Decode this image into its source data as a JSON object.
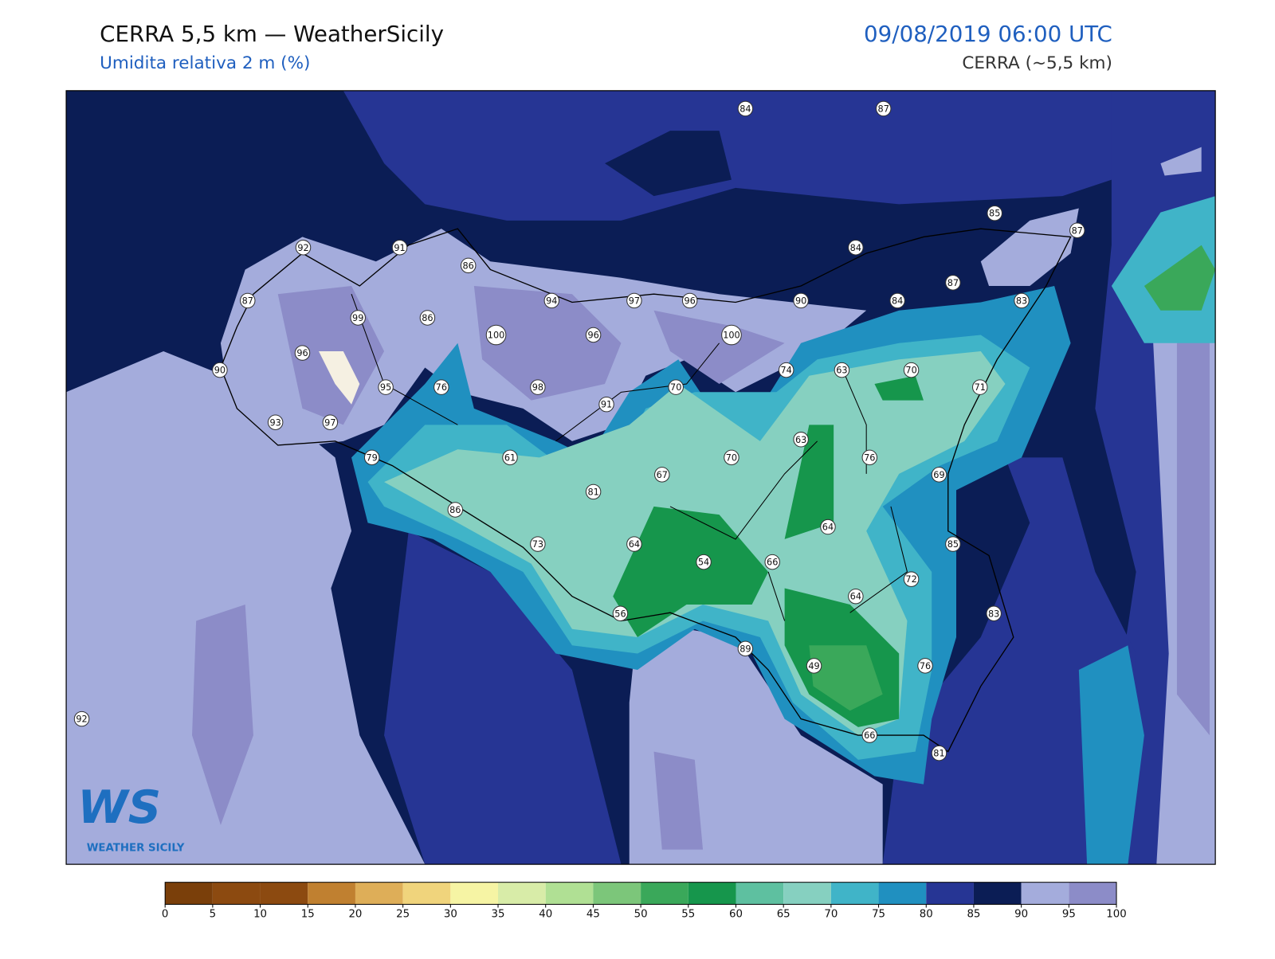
{
  "header": {
    "title": "CERRA 5,5 km — WeatherSicily",
    "subtitle": "Umidita relativa 2 m (%)",
    "datetime": "09/08/2019 06:00 UTC",
    "model": "CERRA (~5,5 km)"
  },
  "logo": {
    "mark": "WS",
    "text": "WEATHER SICILY"
  },
  "stations": [
    84,
    87,
    92,
    91,
    86,
    85,
    87,
    84,
    87,
    99,
    86,
    94,
    97,
    96,
    90,
    84,
    87,
    83,
    100,
    96,
    100,
    96,
    90,
    95,
    76,
    98,
    70,
    74,
    63,
    70,
    71,
    93,
    97,
    91,
    63,
    79,
    61,
    70,
    76,
    67,
    69,
    81,
    86,
    64,
    73,
    64,
    85,
    54,
    66,
    72,
    64,
    56,
    83,
    89,
    49,
    76,
    92,
    66,
    81
  ],
  "colorbar": {
    "ticks": [
      0,
      5,
      10,
      15,
      20,
      25,
      30,
      35,
      40,
      45,
      50,
      55,
      60,
      65,
      70,
      75,
      80,
      85,
      90,
      95,
      100
    ],
    "colors": [
      "#7a3f0a",
      "#8c4a10",
      "#8c4a10",
      "#c08030",
      "#deae58",
      "#f0d47c",
      "#f6f4a4",
      "#d8eca8",
      "#b0e094",
      "#7cc67a",
      "#3aa85a",
      "#16964c",
      "#5ec0a0",
      "#86d0c0",
      "#40b4c8",
      "#2090c0",
      "#263594",
      "#0b1d55",
      "#a4acdc",
      "#8c8cc8"
    ]
  }
}
